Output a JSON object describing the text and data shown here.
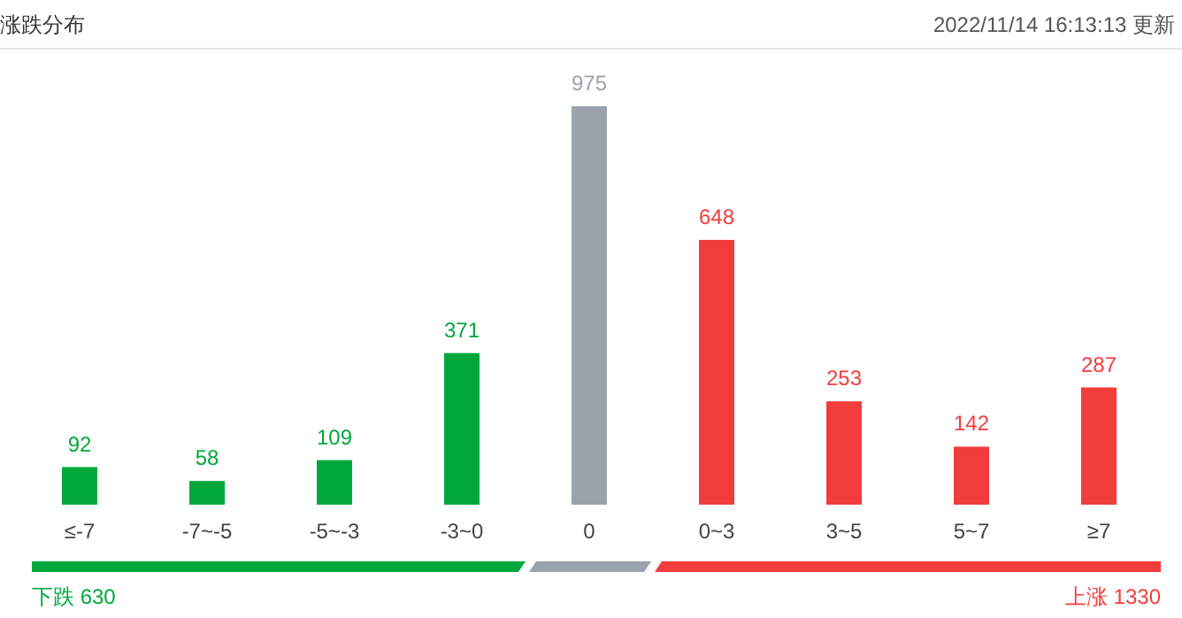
{
  "chart_data": {
    "type": "bar",
    "title": "涨跌分布",
    "annotations": [
      "2022/11/14 16:13:13 更新",
      "下跌 630",
      "上涨 1330"
    ],
    "categories": [
      "≤-7",
      "-7~-5",
      "-5~-3",
      "-3~0",
      "0",
      "0~3",
      "3~5",
      "5~7",
      "≥7"
    ],
    "values": [
      92,
      58,
      109,
      371,
      975,
      648,
      253,
      142,
      287
    ],
    "colors": [
      "#00a83c",
      "#00a83c",
      "#00a83c",
      "#00a83c",
      "#9aa2ab",
      "#f23d3d",
      "#f23d3d",
      "#f23d3d",
      "#f23d3d"
    ],
    "data_labels": true
  }
}
